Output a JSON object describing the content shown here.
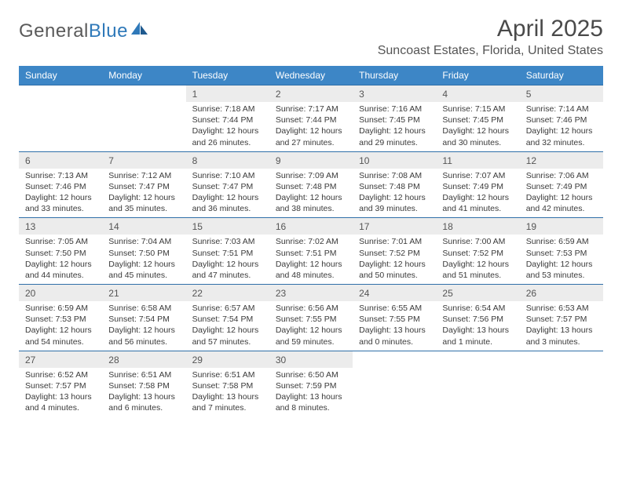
{
  "logo": {
    "text1": "General",
    "text2": "Blue"
  },
  "title": "April 2025",
  "location": "Suncoast Estates, Florida, United States",
  "colors": {
    "header_bg": "#3d86c6",
    "header_text": "#ffffff",
    "week_border": "#2f6fa8",
    "daynum_bg": "#ececec",
    "logo_gray": "#5a5a5a",
    "logo_blue": "#2f79b9"
  },
  "weekdays": [
    "Sunday",
    "Monday",
    "Tuesday",
    "Wednesday",
    "Thursday",
    "Friday",
    "Saturday"
  ],
  "weeks": [
    [
      null,
      null,
      {
        "n": "1",
        "sr": "Sunrise: 7:18 AM",
        "ss": "Sunset: 7:44 PM",
        "dl": "Daylight: 12 hours and 26 minutes."
      },
      {
        "n": "2",
        "sr": "Sunrise: 7:17 AM",
        "ss": "Sunset: 7:44 PM",
        "dl": "Daylight: 12 hours and 27 minutes."
      },
      {
        "n": "3",
        "sr": "Sunrise: 7:16 AM",
        "ss": "Sunset: 7:45 PM",
        "dl": "Daylight: 12 hours and 29 minutes."
      },
      {
        "n": "4",
        "sr": "Sunrise: 7:15 AM",
        "ss": "Sunset: 7:45 PM",
        "dl": "Daylight: 12 hours and 30 minutes."
      },
      {
        "n": "5",
        "sr": "Sunrise: 7:14 AM",
        "ss": "Sunset: 7:46 PM",
        "dl": "Daylight: 12 hours and 32 minutes."
      }
    ],
    [
      {
        "n": "6",
        "sr": "Sunrise: 7:13 AM",
        "ss": "Sunset: 7:46 PM",
        "dl": "Daylight: 12 hours and 33 minutes."
      },
      {
        "n": "7",
        "sr": "Sunrise: 7:12 AM",
        "ss": "Sunset: 7:47 PM",
        "dl": "Daylight: 12 hours and 35 minutes."
      },
      {
        "n": "8",
        "sr": "Sunrise: 7:10 AM",
        "ss": "Sunset: 7:47 PM",
        "dl": "Daylight: 12 hours and 36 minutes."
      },
      {
        "n": "9",
        "sr": "Sunrise: 7:09 AM",
        "ss": "Sunset: 7:48 PM",
        "dl": "Daylight: 12 hours and 38 minutes."
      },
      {
        "n": "10",
        "sr": "Sunrise: 7:08 AM",
        "ss": "Sunset: 7:48 PM",
        "dl": "Daylight: 12 hours and 39 minutes."
      },
      {
        "n": "11",
        "sr": "Sunrise: 7:07 AM",
        "ss": "Sunset: 7:49 PM",
        "dl": "Daylight: 12 hours and 41 minutes."
      },
      {
        "n": "12",
        "sr": "Sunrise: 7:06 AM",
        "ss": "Sunset: 7:49 PM",
        "dl": "Daylight: 12 hours and 42 minutes."
      }
    ],
    [
      {
        "n": "13",
        "sr": "Sunrise: 7:05 AM",
        "ss": "Sunset: 7:50 PM",
        "dl": "Daylight: 12 hours and 44 minutes."
      },
      {
        "n": "14",
        "sr": "Sunrise: 7:04 AM",
        "ss": "Sunset: 7:50 PM",
        "dl": "Daylight: 12 hours and 45 minutes."
      },
      {
        "n": "15",
        "sr": "Sunrise: 7:03 AM",
        "ss": "Sunset: 7:51 PM",
        "dl": "Daylight: 12 hours and 47 minutes."
      },
      {
        "n": "16",
        "sr": "Sunrise: 7:02 AM",
        "ss": "Sunset: 7:51 PM",
        "dl": "Daylight: 12 hours and 48 minutes."
      },
      {
        "n": "17",
        "sr": "Sunrise: 7:01 AM",
        "ss": "Sunset: 7:52 PM",
        "dl": "Daylight: 12 hours and 50 minutes."
      },
      {
        "n": "18",
        "sr": "Sunrise: 7:00 AM",
        "ss": "Sunset: 7:52 PM",
        "dl": "Daylight: 12 hours and 51 minutes."
      },
      {
        "n": "19",
        "sr": "Sunrise: 6:59 AM",
        "ss": "Sunset: 7:53 PM",
        "dl": "Daylight: 12 hours and 53 minutes."
      }
    ],
    [
      {
        "n": "20",
        "sr": "Sunrise: 6:59 AM",
        "ss": "Sunset: 7:53 PM",
        "dl": "Daylight: 12 hours and 54 minutes."
      },
      {
        "n": "21",
        "sr": "Sunrise: 6:58 AM",
        "ss": "Sunset: 7:54 PM",
        "dl": "Daylight: 12 hours and 56 minutes."
      },
      {
        "n": "22",
        "sr": "Sunrise: 6:57 AM",
        "ss": "Sunset: 7:54 PM",
        "dl": "Daylight: 12 hours and 57 minutes."
      },
      {
        "n": "23",
        "sr": "Sunrise: 6:56 AM",
        "ss": "Sunset: 7:55 PM",
        "dl": "Daylight: 12 hours and 59 minutes."
      },
      {
        "n": "24",
        "sr": "Sunrise: 6:55 AM",
        "ss": "Sunset: 7:55 PM",
        "dl": "Daylight: 13 hours and 0 minutes."
      },
      {
        "n": "25",
        "sr": "Sunrise: 6:54 AM",
        "ss": "Sunset: 7:56 PM",
        "dl": "Daylight: 13 hours and 1 minute."
      },
      {
        "n": "26",
        "sr": "Sunrise: 6:53 AM",
        "ss": "Sunset: 7:57 PM",
        "dl": "Daylight: 13 hours and 3 minutes."
      }
    ],
    [
      {
        "n": "27",
        "sr": "Sunrise: 6:52 AM",
        "ss": "Sunset: 7:57 PM",
        "dl": "Daylight: 13 hours and 4 minutes."
      },
      {
        "n": "28",
        "sr": "Sunrise: 6:51 AM",
        "ss": "Sunset: 7:58 PM",
        "dl": "Daylight: 13 hours and 6 minutes."
      },
      {
        "n": "29",
        "sr": "Sunrise: 6:51 AM",
        "ss": "Sunset: 7:58 PM",
        "dl": "Daylight: 13 hours and 7 minutes."
      },
      {
        "n": "30",
        "sr": "Sunrise: 6:50 AM",
        "ss": "Sunset: 7:59 PM",
        "dl": "Daylight: 13 hours and 8 minutes."
      },
      null,
      null,
      null
    ]
  ]
}
